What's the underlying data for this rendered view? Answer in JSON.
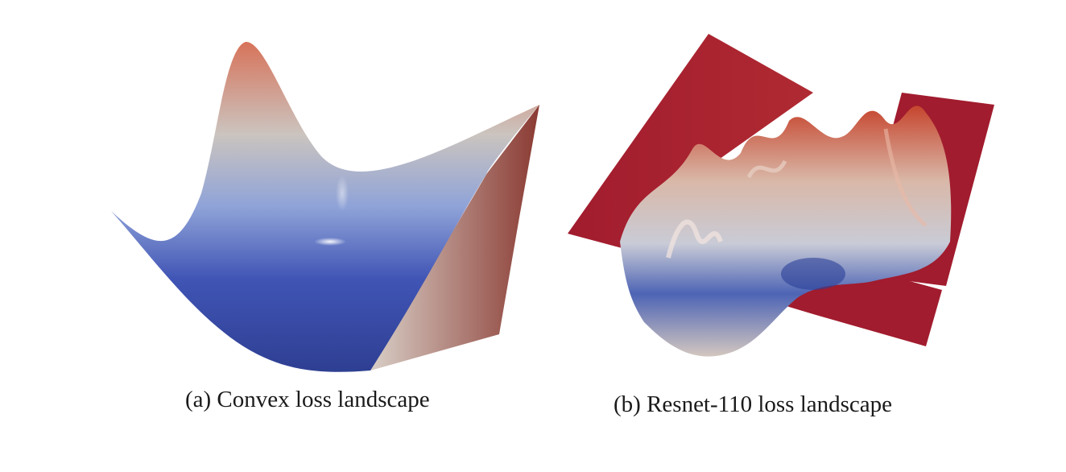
{
  "figures": [
    {
      "id": "a",
      "caption": "(a) Convex loss landscape",
      "colors": {
        "low": "#3a4fa8",
        "mid": "#c9c8c6",
        "high": "#d7735a"
      }
    },
    {
      "id": "b",
      "caption": "(b) Resnet-110 loss landscape",
      "colors": {
        "low": "#2c3f97",
        "mid": "#d9d3cf",
        "high": "#c6452e",
        "plateau": "#a11c2e"
      }
    }
  ]
}
